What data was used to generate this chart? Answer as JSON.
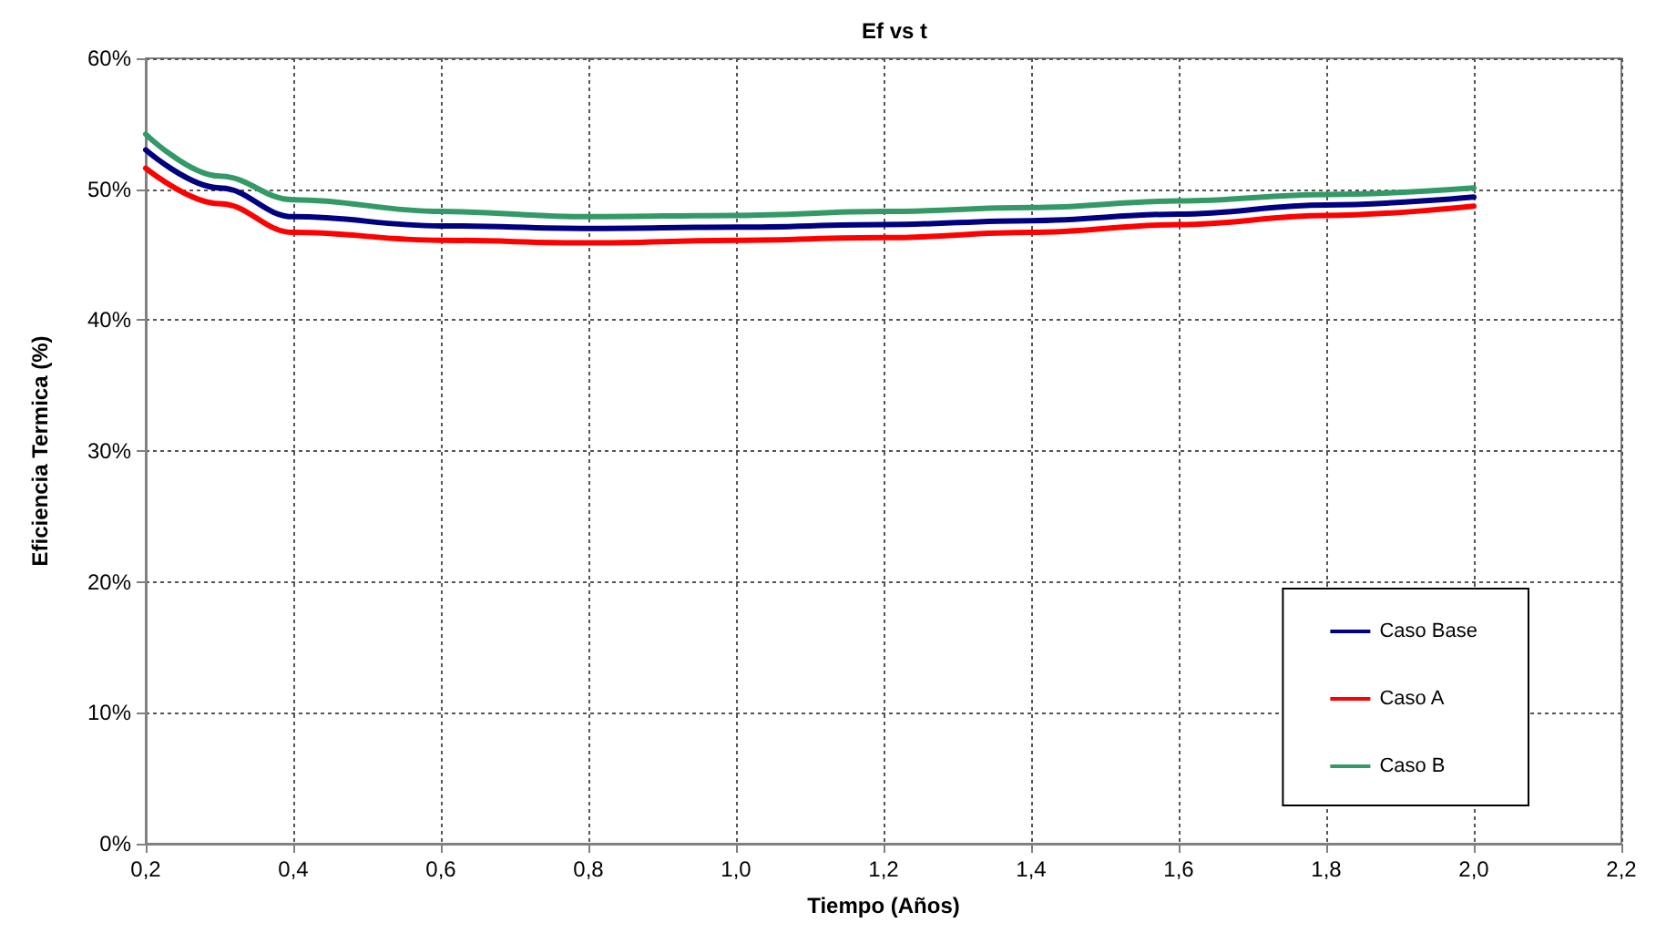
{
  "chart_data": {
    "type": "line",
    "title": "Ef vs t",
    "xlabel": "Tiempo (Años)",
    "ylabel": "Eficiencia Termica (%)",
    "x": [
      0.2,
      0.3,
      0.4,
      0.6,
      0.8,
      1.0,
      1.2,
      1.4,
      1.6,
      1.8,
      2.0
    ],
    "series": [
      {
        "name": "Caso Base",
        "color": "#000080",
        "values": [
          53.0,
          50.1,
          47.9,
          47.2,
          47.0,
          47.1,
          47.3,
          47.6,
          48.1,
          48.8,
          49.4
        ]
      },
      {
        "name": "Caso A",
        "color": "#ff0000",
        "values": [
          51.6,
          48.9,
          46.7,
          46.1,
          45.9,
          46.1,
          46.3,
          46.7,
          47.3,
          48.0,
          48.7
        ]
      },
      {
        "name": "Caso B",
        "color": "#339966",
        "values": [
          54.2,
          51.0,
          49.2,
          48.3,
          47.9,
          48.0,
          48.3,
          48.6,
          49.1,
          49.6,
          50.1
        ]
      }
    ],
    "xlim": [
      0.2,
      2.2
    ],
    "xticks": [
      {
        "value": 0.2,
        "label": "0,2"
      },
      {
        "value": 0.4,
        "label": "0,4"
      },
      {
        "value": 0.6,
        "label": "0,6"
      },
      {
        "value": 0.8,
        "label": "0,8"
      },
      {
        "value": 1.0,
        "label": "1,0"
      },
      {
        "value": 1.2,
        "label": "1,2"
      },
      {
        "value": 1.4,
        "label": "1,4"
      },
      {
        "value": 1.6,
        "label": "1,6"
      },
      {
        "value": 1.8,
        "label": "1,8"
      },
      {
        "value": 2.0,
        "label": "2,0"
      },
      {
        "value": 2.2,
        "label": "2,2"
      }
    ],
    "ylim": [
      0,
      60
    ],
    "yticks": [
      {
        "value": 0,
        "label": "0%"
      },
      {
        "value": 10,
        "label": "10%"
      },
      {
        "value": 20,
        "label": "20%"
      },
      {
        "value": 30,
        "label": "30%"
      },
      {
        "value": 40,
        "label": "40%"
      },
      {
        "value": 50,
        "label": "50%"
      },
      {
        "value": 60,
        "label": "60%"
      }
    ],
    "grid": true,
    "legend": "bottom right",
    "marker": "none",
    "line_style": "solid"
  }
}
